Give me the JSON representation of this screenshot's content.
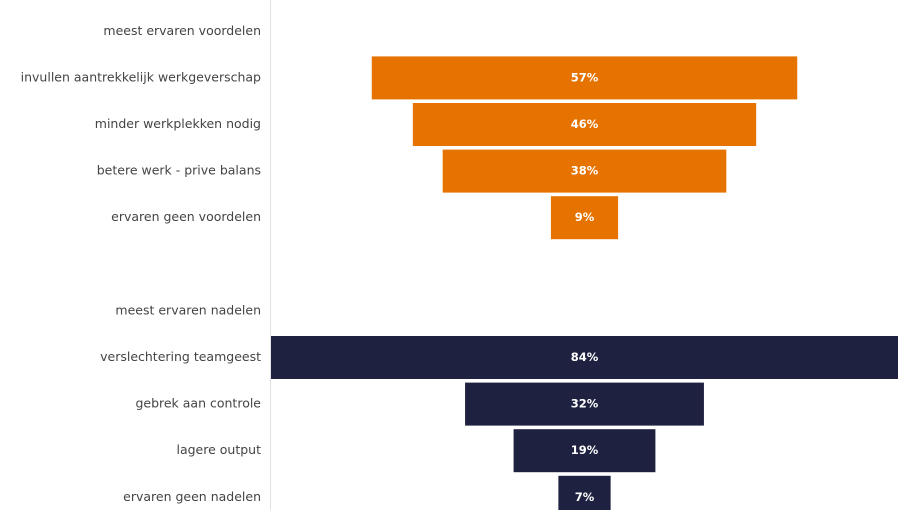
{
  "chart_data": {
    "type": "funnel",
    "categories": [
      "meest ervaren voordelen",
      "invullen aantrekkelijk werkgeverschap",
      "minder werkplekken nodig",
      "betere werk - prive balans",
      "ervaren geen voordelen",
      null,
      "meest ervaren nadelen",
      "verslechtering teamgeest",
      "gebrek aan controle",
      "lagere output",
      "ervaren geen nadelen"
    ],
    "values": [
      null,
      57,
      46,
      38,
      9,
      null,
      null,
      84,
      32,
      19,
      7
    ],
    "value_labels": [
      null,
      "57%",
      "46%",
      "38%",
      "9%",
      null,
      null,
      "84%",
      "32%",
      "19%",
      "7%"
    ],
    "colors": [
      null,
      "#e67300",
      "#e67300",
      "#e67300",
      "#e67300",
      null,
      null,
      "#1e2140",
      "#1e2140",
      "#1e2140",
      "#1e2140"
    ]
  }
}
